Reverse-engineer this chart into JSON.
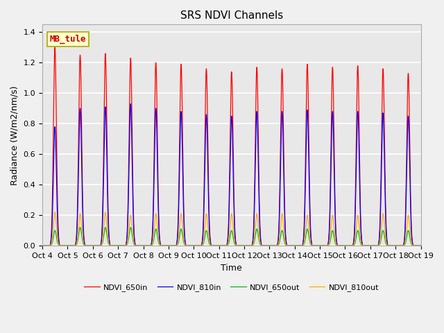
{
  "title": "SRS NDVI Channels",
  "xlabel": "Time",
  "ylabel": "Radiance (W/m2/nm/s)",
  "annotation_text": "MB_tule",
  "ylim": [
    0,
    1.45
  ],
  "background_color": "#f0f0f0",
  "plot_bg_color": "#e8e8e8",
  "series": {
    "NDVI_650in": {
      "color": "#ff0000",
      "label": "NDVI_650in"
    },
    "NDVI_810in": {
      "color": "#0000ff",
      "label": "NDVI_810in"
    },
    "NDVI_650out": {
      "color": "#00bb00",
      "label": "NDVI_650out"
    },
    "NDVI_810out": {
      "color": "#ffaa00",
      "label": "NDVI_810out"
    }
  },
  "peak_650in": [
    1.3,
    1.25,
    1.26,
    1.23,
    1.2,
    1.19,
    1.16,
    1.14,
    1.17,
    1.16,
    1.19,
    1.17,
    1.18,
    1.16,
    1.13
  ],
  "peak_810in": [
    0.78,
    0.9,
    0.91,
    0.93,
    0.9,
    0.88,
    0.86,
    0.85,
    0.88,
    0.88,
    0.89,
    0.88,
    0.88,
    0.87,
    0.85
  ],
  "peak_650out": [
    0.1,
    0.12,
    0.12,
    0.12,
    0.11,
    0.11,
    0.1,
    0.1,
    0.11,
    0.1,
    0.11,
    0.1,
    0.1,
    0.1,
    0.1
  ],
  "peak_810out": [
    0.22,
    0.21,
    0.22,
    0.2,
    0.21,
    0.21,
    0.21,
    0.21,
    0.21,
    0.21,
    0.2,
    0.2,
    0.2,
    0.21,
    0.2
  ],
  "num_days": 15,
  "points_per_day": 200,
  "tick_labels": [
    "Oct 4",
    "Oct 5",
    "Oct 6",
    "Oct 7",
    "Oct 8",
    "Oct 9",
    "Oct 10",
    "Oct 11",
    "Oct 12",
    "Oct 13",
    "Oct 14",
    "Oct 15",
    "Oct 16",
    "Oct 17",
    "Oct 18",
    "Oct 19"
  ],
  "tick_positions": [
    0,
    1,
    2,
    3,
    4,
    5,
    6,
    7,
    8,
    9,
    10,
    11,
    12,
    13,
    14,
    15
  ],
  "title_fontsize": 11,
  "label_fontsize": 9,
  "tick_fontsize": 8,
  "legend_fontsize": 8
}
